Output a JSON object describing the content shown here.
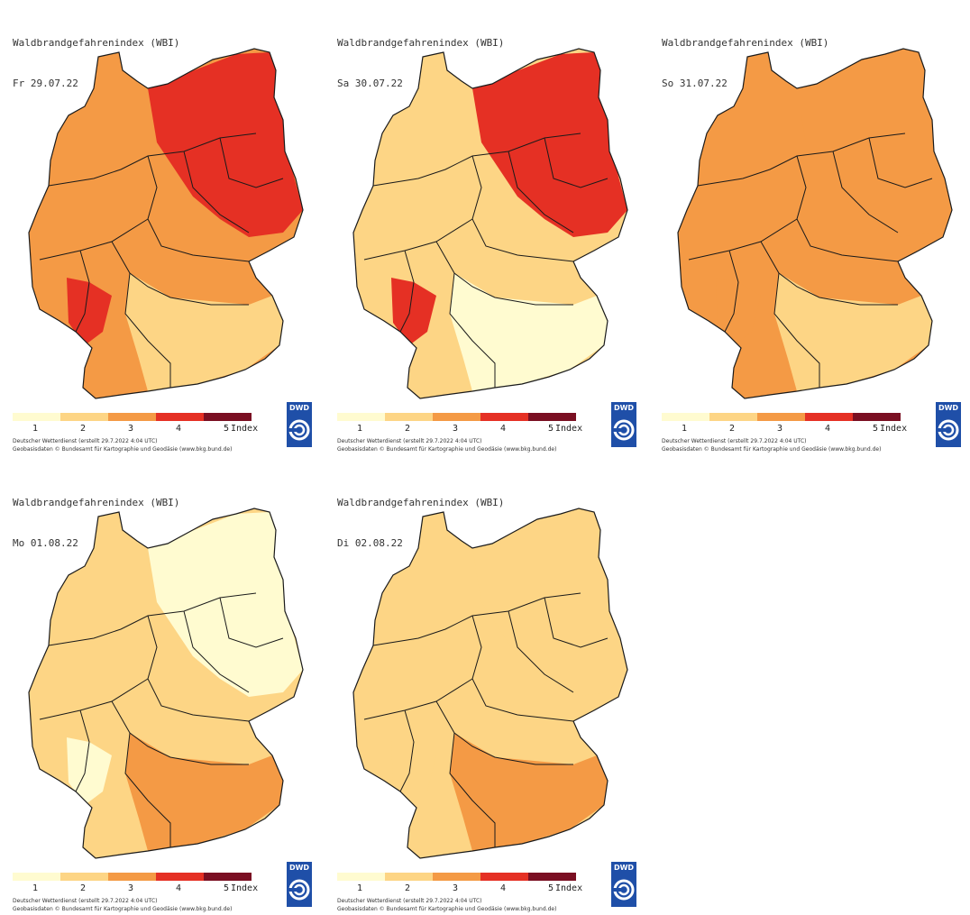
{
  "colors": {
    "1": "#fffbd0",
    "2": "#fdd585",
    "3": "#f49a45",
    "4": "#e53024",
    "5": "#7a0f22",
    "border": "#1a1a1a",
    "dwd_blue": "#1f4fa8"
  },
  "legend": {
    "ticks": [
      "1",
      "2",
      "3",
      "4",
      "5"
    ],
    "unit": "Index"
  },
  "credits": {
    "line1": "Deutscher Wetterdienst (erstellt 29.7.2022 4:04 UTC)",
    "line2": "Geobasisdaten © Bundesamt für Kartographie und Geodäsie (www.bkg.bund.de)"
  },
  "logo_text": "DWD",
  "panels": [
    {
      "title": "Waldbrandgefahrenindex (WBI)",
      "date": "Fr 29.07.22",
      "base": "3",
      "north": "4",
      "south": "2"
    },
    {
      "title": "Waldbrandgefahrenindex (WBI)",
      "date": "Sa 30.07.22",
      "base": "2",
      "north": "4",
      "south": "1"
    },
    {
      "title": "Waldbrandgefahrenindex (WBI)",
      "date": "So 31.07.22",
      "base": "3",
      "north": "3",
      "south": "2"
    },
    {
      "title": "Waldbrandgefahrenindex (WBI)",
      "date": "Mo 01.08.22",
      "base": "2",
      "north": "1",
      "south": "3"
    },
    {
      "title": "Waldbrandgefahrenindex (WBI)",
      "date": "Di 02.08.22",
      "base": "2",
      "north": "2",
      "south": "3"
    }
  ]
}
